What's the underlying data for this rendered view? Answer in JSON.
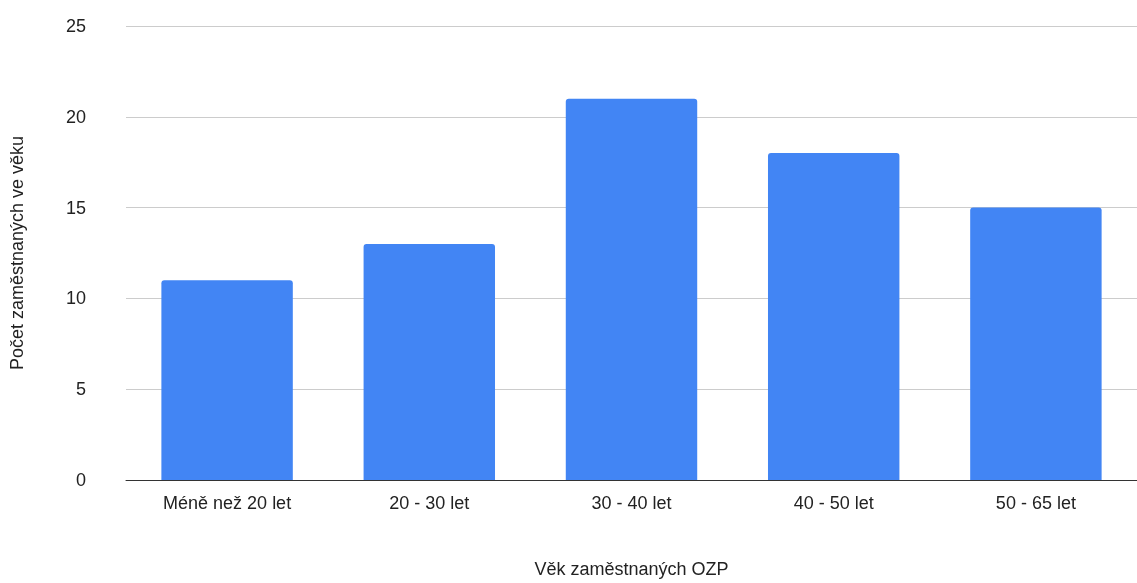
{
  "chart_data": {
    "type": "bar",
    "xlabel": "Věk zaměstnaných OZP",
    "ylabel": "Počet zaměstnaných ve věku",
    "categories": [
      "Méně než 20 let",
      "20 - 30 let",
      "30 - 40 let",
      "40 - 50 let",
      "50 - 65 let"
    ],
    "values": [
      11,
      13,
      21,
      18,
      15
    ],
    "color": "#4285f4",
    "ylim": [
      0,
      25
    ],
    "yticks": [
      0,
      5,
      10,
      15,
      20,
      25
    ],
    "grid": "y"
  }
}
